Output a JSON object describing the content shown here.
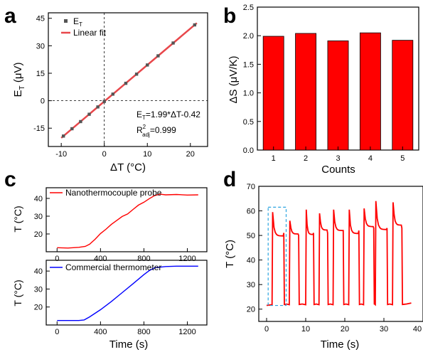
{
  "panels": {
    "a": "a",
    "b": "b",
    "c": "c",
    "d": "d"
  },
  "chart_data": [
    {
      "id": "a",
      "type": "scatter",
      "xlabel": "ΔT (°C)",
      "ylabel_main": "E",
      "ylabel_sub": "T",
      "ylabel_unit": " (μV)",
      "xlim": [
        -13,
        24
      ],
      "ylim": [
        -25,
        48
      ],
      "xticks": [
        -10,
        0,
        10,
        20
      ],
      "yticks": [
        -15,
        0,
        15,
        30,
        45
      ],
      "reference_lines": {
        "x": 0,
        "y": 0,
        "style": "dashed"
      },
      "legend_placement": "top-left",
      "series": [
        {
          "name_main": "E",
          "name_sub": "T",
          "color": "#555555",
          "marker": "square",
          "x": [
            -9.5,
            -7.5,
            -5.5,
            -3.5,
            -1.5,
            0,
            2,
            5,
            7.5,
            10,
            12.5,
            16,
            21
          ],
          "y": [
            -19.3,
            -15.3,
            -11.4,
            -7.4,
            -3.4,
            -0.4,
            3.6,
            9.5,
            14.5,
            19.5,
            24.5,
            31.5,
            41.4
          ]
        },
        {
          "name": "Linear fit",
          "color": "#e8474b",
          "type": "line",
          "x": [
            -10,
            21.5
          ],
          "y": [
            -20.3,
            42.4
          ]
        }
      ],
      "annotation_eq": "E",
      "annotation_eq_sub": "T",
      "annotation_eq_rest": "=1.99*ΔT-0.42",
      "annotation_r": "R",
      "annotation_r_sup": "2",
      "annotation_r_sub": "adj",
      "annotation_r_rest": "=0.999"
    },
    {
      "id": "b",
      "type": "bar",
      "xlabel": "Counts",
      "ylabel": "ΔS (μV/K)",
      "categories": [
        "1",
        "2",
        "3",
        "4",
        "5"
      ],
      "values": [
        1.99,
        2.04,
        1.91,
        2.05,
        1.92
      ],
      "ylim": [
        0,
        2.5
      ],
      "yticks": [
        "0.0",
        "0.5",
        "1.0",
        "1.5",
        "2.0",
        "2.5"
      ],
      "color": "#ff0000"
    },
    {
      "id": "c-top",
      "type": "line",
      "ylabel": "T (°C)",
      "xlim": [
        -100,
        1380
      ],
      "ylim": [
        10,
        46
      ],
      "yticks": [
        20,
        30,
        40
      ],
      "xticks": [
        0,
        400,
        800,
        1200
      ],
      "legend_placement": "top-left",
      "series": [
        {
          "name": "Nanothermocouple probe",
          "color": "#ff0000",
          "x": [
            0,
            100,
            200,
            260,
            300,
            350,
            400,
            450,
            500,
            550,
            600,
            650,
            700,
            750,
            800,
            850,
            900,
            950,
            1000,
            1100,
            1200,
            1300
          ],
          "y": [
            12.3,
            12.1,
            12.5,
            13.0,
            14.5,
            17.0,
            20.0,
            23.0,
            25.5,
            27.5,
            29.5,
            31.5,
            33.8,
            36.0,
            38.2,
            40.0,
            41.5,
            42.0,
            42.0,
            42.2,
            41.9,
            42.0
          ]
        }
      ]
    },
    {
      "id": "c-bottom",
      "type": "line",
      "ylabel": "T (°C)",
      "xlabel": "Time (s)",
      "xlim": [
        -100,
        1380
      ],
      "ylim": [
        10,
        46
      ],
      "yticks": [
        20,
        30,
        40
      ],
      "xticks": [
        0,
        400,
        800,
        1200
      ],
      "legend_placement": "top-left",
      "series": [
        {
          "name": "Commercial thermometer",
          "color": "#0000ff",
          "x": [
            0,
            100,
            200,
            250,
            300,
            400,
            500,
            600,
            700,
            800,
            850,
            900,
            1000,
            1100,
            1200,
            1300
          ],
          "y": [
            12.5,
            12.5,
            12.5,
            12.8,
            14.5,
            18.5,
            23.0,
            28.0,
            33.0,
            38.0,
            40.3,
            41.8,
            42.5,
            42.7,
            42.7,
            42.7
          ]
        }
      ]
    },
    {
      "id": "d",
      "type": "line",
      "ylabel": "T (°C)",
      "xlabel": "Time (s)",
      "xlim": [
        -2,
        40
      ],
      "ylim": [
        15,
        70
      ],
      "yticks": [
        20,
        30,
        40,
        50,
        60,
        70
      ],
      "xticks": [
        "0",
        "10",
        "20",
        "30",
        "40"
      ],
      "highlight_box": {
        "x": [
          0.4,
          5.0
        ],
        "y": [
          21.5,
          61.5
        ],
        "color": "#29a3e0",
        "style": "dashed"
      },
      "pulses": [
        {
          "start": 1.4,
          "end": 4.4,
          "peak": 59.5,
          "plateau": 51
        },
        {
          "start": 5.8,
          "end": 8.2,
          "peak": 56,
          "plateau": 50
        },
        {
          "start": 10.0,
          "end": 12.0,
          "peak": 60.5,
          "plateau": 51
        },
        {
          "start": 13.4,
          "end": 15.6,
          "peak": 59,
          "plateau": 51
        },
        {
          "start": 17.0,
          "end": 19.6,
          "peak": 60.5,
          "plateau": 52
        },
        {
          "start": 21.0,
          "end": 23.6,
          "peak": 60.5,
          "plateau": 52
        },
        {
          "start": 24.8,
          "end": 27.4,
          "peak": 61,
          "plateau": 53
        },
        {
          "start": 27.8,
          "end": 30.8,
          "peak": 64,
          "plateau": 53
        },
        {
          "start": 32.2,
          "end": 34.6,
          "peak": 63.5,
          "plateau": 53
        }
      ],
      "baseline": 21.5,
      "x_end": 37,
      "color": "#ff0000"
    }
  ]
}
